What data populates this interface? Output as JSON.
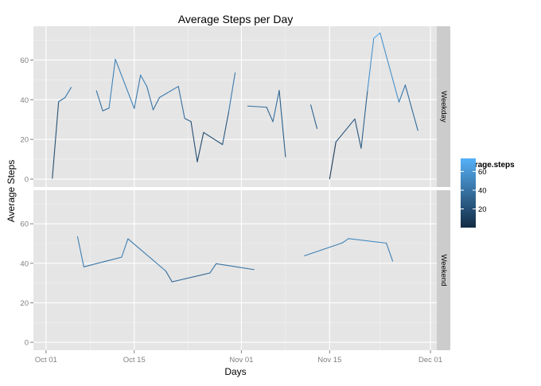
{
  "chart_data": {
    "type": "line",
    "title": "Average Steps per Day",
    "xlabel": "Days",
    "ylabel": "Average Steps",
    "x_range": [
      "2012-09-29",
      "2012-12-02"
    ],
    "ylim": [
      -4,
      77
    ],
    "y_ticks": [
      0,
      20,
      40,
      60
    ],
    "x_ticks": [
      {
        "date": "2012-10-01",
        "label": "Oct 01"
      },
      {
        "date": "2012-10-15",
        "label": "Oct 15"
      },
      {
        "date": "2012-11-01",
        "label": "Nov 01"
      },
      {
        "date": "2012-11-15",
        "label": "Nov 15"
      },
      {
        "date": "2012-12-01",
        "label": "Dec 01"
      }
    ],
    "grid": true,
    "color_scale": {
      "name": "average.steps",
      "low_color": "#132B43",
      "high_color": "#56B1F7",
      "min": 0,
      "max": 74,
      "ticks": [
        20,
        40,
        60
      ]
    },
    "facets": [
      {
        "name": "Weekday",
        "segments": [
          [
            [
              "2012-10-02",
              0.4
            ],
            [
              "2012-10-03",
              39
            ],
            [
              "2012-10-04",
              41
            ],
            [
              "2012-10-05",
              46.2
            ]
          ],
          [
            [
              "2012-10-09",
              44.5
            ],
            [
              "2012-10-10",
              34.4
            ],
            [
              "2012-10-11",
              35.8
            ],
            [
              "2012-10-12",
              60.4
            ],
            [
              "2012-10-15",
              35.6
            ],
            [
              "2012-10-16",
              52.4
            ],
            [
              "2012-10-17",
              46.7
            ],
            [
              "2012-10-18",
              34.9
            ],
            [
              "2012-10-19",
              41.1
            ],
            [
              "2012-10-22",
              46.7
            ],
            [
              "2012-10-23",
              30.6
            ],
            [
              "2012-10-24",
              29
            ],
            [
              "2012-10-25",
              8.7
            ],
            [
              "2012-10-26",
              23.5
            ],
            [
              "2012-10-29",
              17.4
            ],
            [
              "2012-10-30",
              34.1
            ],
            [
              "2012-10-31",
              53.5
            ]
          ],
          [
            [
              "2012-11-02",
              36.8
            ],
            [
              "2012-11-05",
              36.2
            ],
            [
              "2012-11-06",
              28.9
            ],
            [
              "2012-11-07",
              44.7
            ],
            [
              "2012-11-08",
              11.2
            ]
          ],
          [
            [
              "2012-11-12",
              37.4
            ],
            [
              "2012-11-13",
              25.5
            ]
          ],
          [
            [
              "2012-11-15",
              0.1
            ],
            [
              "2012-11-16",
              18.7
            ],
            [
              "2012-11-19",
              30.3
            ],
            [
              "2012-11-20",
              15.5
            ],
            [
              "2012-11-21",
              44.4
            ],
            [
              "2012-11-22",
              70.9
            ],
            [
              "2012-11-23",
              73.6
            ],
            [
              "2012-11-26",
              38.8
            ],
            [
              "2012-11-27",
              47.4
            ],
            [
              "2012-11-29",
              24.5
            ]
          ]
        ]
      },
      {
        "name": "Weekend",
        "segments": [
          [
            [
              "2012-10-06",
              53.5
            ],
            [
              "2012-10-07",
              38.2
            ],
            [
              "2012-10-13",
              43.1
            ],
            [
              "2012-10-14",
              52.4
            ],
            [
              "2012-10-20",
              36.1
            ],
            [
              "2012-10-21",
              30.6
            ],
            [
              "2012-10-27",
              35.1
            ],
            [
              "2012-10-28",
              39.8
            ],
            [
              "2012-11-03",
              36.8
            ]
          ],
          [
            [
              "2012-11-11",
              43.8
            ],
            [
              "2012-11-17",
              50.3
            ],
            [
              "2012-11-18",
              52.5
            ],
            [
              "2012-11-24",
              50.2
            ],
            [
              "2012-11-25",
              41.1
            ]
          ]
        ]
      }
    ]
  }
}
